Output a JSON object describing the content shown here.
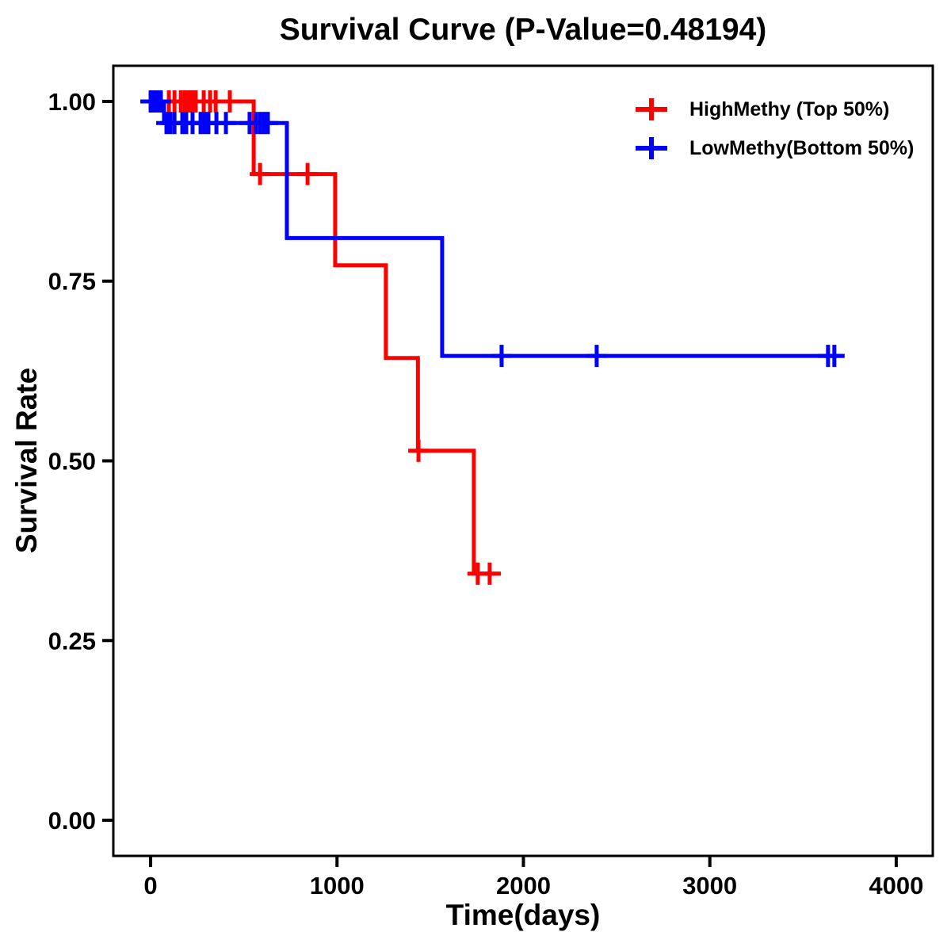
{
  "title": "Survival Curve (P-Value=0.48194)",
  "axes": {
    "x": {
      "label": "Time(days)"
    },
    "y": {
      "label": "Survival Rate"
    }
  },
  "legend": {
    "position": "top-right"
  },
  "chart_data": {
    "type": "line",
    "subtype": "kaplan-meier-step",
    "title": "Survival Curve (P-Value=0.48194)",
    "xlabel": "Time(days)",
    "ylabel": "Survival Rate",
    "xlim": [
      -200,
      4196
    ],
    "ylim": [
      -0.0496,
      1.0496
    ],
    "grid": false,
    "legend_position": "top-right",
    "x_ticks": [
      0,
      1000,
      2000,
      3000,
      4000
    ],
    "x_tick_labels": [
      "0",
      "1000",
      "2000",
      "3000",
      "4000"
    ],
    "y_ticks": [
      0.0,
      0.25,
      0.5,
      0.75,
      1.0
    ],
    "y_tick_labels": [
      "0.00",
      "0.25",
      "0.50",
      "0.75",
      "1.00"
    ],
    "series": [
      {
        "name": "HighMethy (Top 50%)",
        "color": "#ff0000",
        "steps": [
          [
            0,
            1.0
          ],
          [
            553,
            0.899
          ],
          [
            990,
            0.772
          ],
          [
            1262,
            0.643
          ],
          [
            1434,
            0.514
          ],
          [
            1734,
            0.343
          ]
        ],
        "end_time": 1879,
        "censored": [
          [
            98,
            1.0
          ],
          [
            128,
            1.0
          ],
          [
            162,
            1.0
          ],
          [
            183,
            1.0
          ],
          [
            204,
            1.0
          ],
          [
            225,
            1.0
          ],
          [
            242,
            1.0
          ],
          [
            285,
            1.0
          ],
          [
            319,
            1.0
          ],
          [
            349,
            1.0
          ],
          [
            425,
            1.0
          ],
          [
            587,
            0.899
          ],
          [
            842,
            0.899
          ],
          [
            1437,
            0.514
          ],
          [
            1755,
            0.343
          ],
          [
            1819,
            0.343
          ]
        ]
      },
      {
        "name": "LowMethy(Bottom 50%)",
        "color": "#0000ff",
        "steps": [
          [
            0,
            1.0
          ],
          [
            72,
            0.97
          ],
          [
            731,
            0.81
          ],
          [
            1564,
            0.646
          ]
        ],
        "end_time": 3719,
        "censored": [
          [
            0,
            1.0
          ],
          [
            15,
            1.0
          ],
          [
            35,
            1.0
          ],
          [
            55,
            1.0
          ],
          [
            85,
            0.97
          ],
          [
            106,
            0.97
          ],
          [
            128,
            0.97
          ],
          [
            170,
            0.97
          ],
          [
            191,
            0.97
          ],
          [
            225,
            0.97
          ],
          [
            268,
            0.97
          ],
          [
            289,
            0.97
          ],
          [
            310,
            0.97
          ],
          [
            353,
            0.97
          ],
          [
            404,
            0.97
          ],
          [
            531,
            0.97
          ],
          [
            565,
            0.97
          ],
          [
            587,
            0.97
          ],
          [
            608,
            0.97
          ],
          [
            629,
            0.97
          ],
          [
            1883,
            0.646
          ],
          [
            2393,
            0.646
          ],
          [
            3634,
            0.646
          ],
          [
            3668,
            0.646
          ]
        ]
      }
    ]
  }
}
